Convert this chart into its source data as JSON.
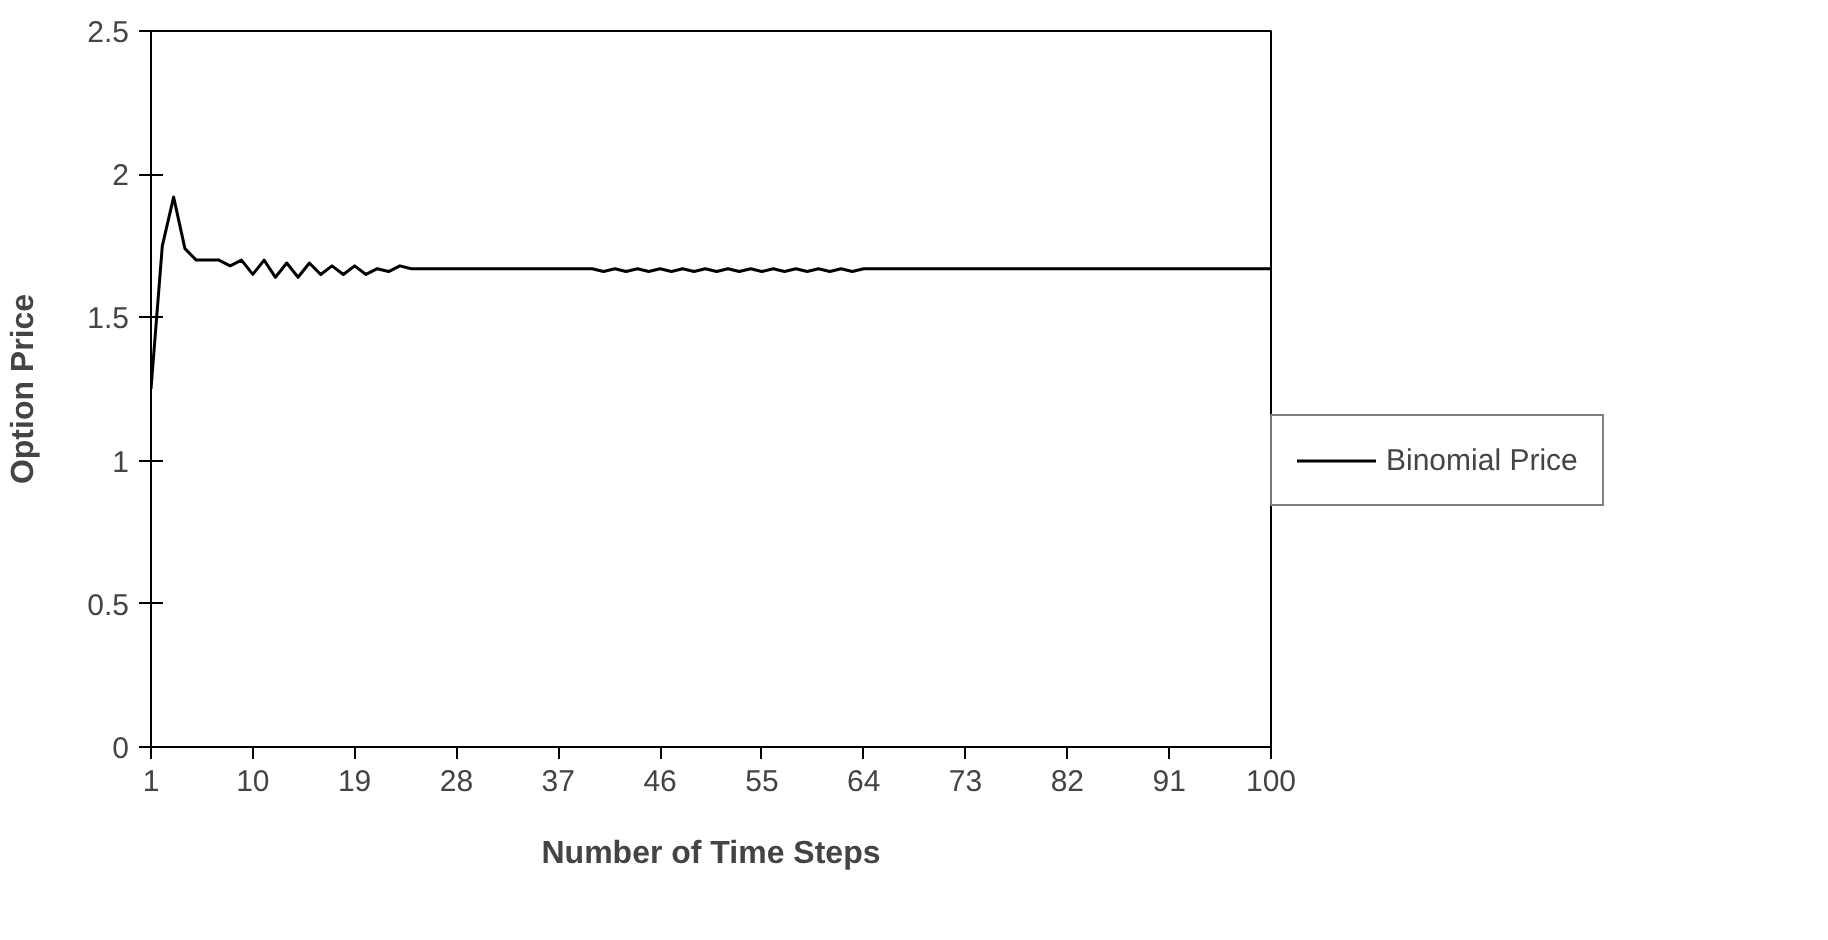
{
  "chart_data": {
    "type": "line",
    "xlabel": "Number of Time Steps",
    "ylabel": "Option Price",
    "x": [
      1,
      2,
      3,
      4,
      5,
      6,
      7,
      8,
      9,
      10,
      11,
      12,
      13,
      14,
      15,
      16,
      17,
      18,
      19,
      20,
      21,
      22,
      23,
      24,
      25,
      40,
      41,
      42,
      43,
      44,
      45,
      46,
      47,
      48,
      49,
      50,
      51,
      52,
      53,
      54,
      55,
      56,
      57,
      58,
      59,
      60,
      61,
      62,
      63,
      64,
      65,
      100
    ],
    "series": [
      {
        "name": "Binomial Price",
        "color": "#000000",
        "values": [
          1.25,
          1.75,
          1.92,
          1.74,
          1.7,
          1.7,
          1.7,
          1.68,
          1.7,
          1.65,
          1.7,
          1.64,
          1.69,
          1.64,
          1.69,
          1.65,
          1.68,
          1.65,
          1.68,
          1.65,
          1.67,
          1.66,
          1.68,
          1.67,
          1.67,
          1.67,
          1.66,
          1.67,
          1.66,
          1.67,
          1.66,
          1.67,
          1.66,
          1.67,
          1.66,
          1.67,
          1.66,
          1.67,
          1.66,
          1.67,
          1.66,
          1.67,
          1.66,
          1.67,
          1.66,
          1.67,
          1.66,
          1.67,
          1.66,
          1.67,
          1.67,
          1.67
        ]
      }
    ],
    "xlim": [
      1,
      100
    ],
    "xticks": [
      1,
      10,
      19,
      28,
      37,
      46,
      55,
      64,
      73,
      82,
      91,
      100
    ],
    "ylim": [
      0,
      2.5
    ],
    "yticks": [
      0,
      0.5,
      1,
      1.5,
      2,
      2.5
    ],
    "grid": false,
    "legend": "right",
    "marker": "none",
    "line_style": "solid"
  }
}
